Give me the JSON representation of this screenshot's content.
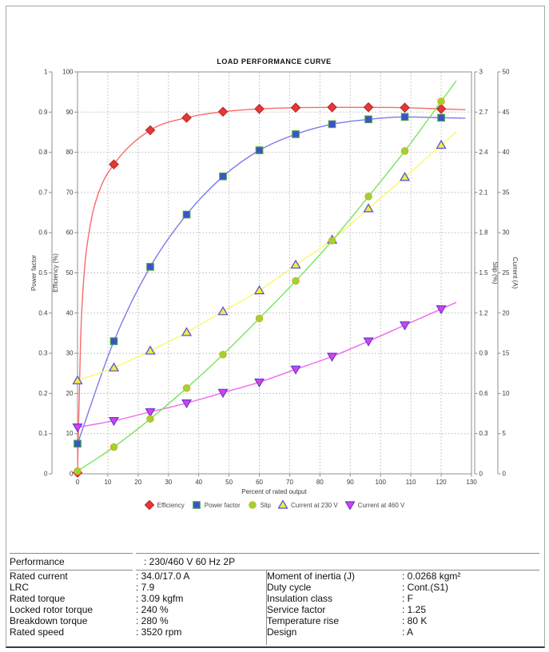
{
  "chart_data": {
    "type": "line",
    "title": "LOAD PERFORMANCE CURVE",
    "xlabel": "Percent of rated output",
    "x_range": [
      0,
      130
    ],
    "x_ticks": [
      "0",
      "10",
      "20",
      "30",
      "40",
      "50",
      "60",
      "70",
      "80",
      "90",
      "100",
      "110",
      "120",
      "130"
    ],
    "grid": true,
    "legend_position": "bottom",
    "x": [
      0,
      12,
      24,
      36,
      48,
      60,
      72,
      84,
      96,
      108,
      120
    ],
    "axes": [
      {
        "id": "pf",
        "title": "Power factor",
        "min": 0,
        "max": 1,
        "side": "left-outer",
        "ticks": [
          "0",
          "0.1",
          "0.2",
          "0.3",
          "0.4",
          "0.5",
          "0.6",
          "0.7",
          "0.8",
          "0.9",
          "1"
        ]
      },
      {
        "id": "eff",
        "title": "Efficiency (%)",
        "min": 0,
        "max": 100,
        "side": "left-inner",
        "ticks": [
          "0",
          "10",
          "20",
          "30",
          "40",
          "50",
          "60",
          "70",
          "80",
          "90",
          "100"
        ]
      },
      {
        "id": "slip",
        "title": "Slip (%)",
        "min": 0,
        "max": 3,
        "side": "right-inner",
        "ticks": [
          "0",
          "0.3",
          "0.6",
          "0.9",
          "1.2",
          "1.5",
          "1.8",
          "2.1",
          "2.4",
          "2.7",
          "3"
        ]
      },
      {
        "id": "cur",
        "title": "Current (A)",
        "min": 0,
        "max": 50,
        "side": "right-outer",
        "ticks": [
          "0",
          "5",
          "10",
          "15",
          "20",
          "25",
          "30",
          "35",
          "40",
          "45",
          "50"
        ]
      }
    ],
    "series": [
      {
        "name": "Efficiency",
        "axis": "eff",
        "marker": "diamond",
        "line_color": "#f96b6b",
        "fill": "#e53935",
        "stroke": "#bc2b2b",
        "values": [
          0.3,
          77,
          85.5,
          88.6,
          90.1,
          90.8,
          91.1,
          91.2,
          91.2,
          91.1,
          90.8
        ],
        "rise_hint": [
          [
            1,
            33
          ],
          [
            2,
            48
          ],
          [
            4,
            61
          ],
          [
            7,
            70
          ]
        ],
        "extend_to": 128
      },
      {
        "name": "Power factor",
        "axis": "pf",
        "marker": "square",
        "line_color": "#7b7bea",
        "fill": "#3d50cf",
        "stroke": "#3f9e43",
        "values": [
          0.075,
          0.33,
          0.515,
          0.645,
          0.74,
          0.805,
          0.845,
          0.87,
          0.882,
          0.888,
          0.886
        ],
        "extend_to": 128
      },
      {
        "name": "Slip",
        "axis": "slip",
        "marker": "circle",
        "line_color": "#77e45c",
        "fill": "#8cdc32",
        "stroke": "#eda32f",
        "values": [
          0.02,
          0.2,
          0.41,
          0.64,
          0.89,
          1.16,
          1.44,
          1.74,
          2.07,
          2.41,
          2.78
        ],
        "extend_to": 125
      },
      {
        "name": "Current at 230 V",
        "axis": "cur",
        "marker": "triangle-up",
        "line_color": "#fdf76a",
        "fill": "#f3eb46",
        "stroke": "#4d4dd2",
        "values": [
          11.6,
          13.2,
          15.3,
          17.6,
          20.2,
          22.8,
          26.0,
          29.1,
          33.0,
          36.9,
          40.9
        ],
        "extend_to": 125
      },
      {
        "name": "Current at 460 V",
        "axis": "cur",
        "marker": "triangle-down",
        "line_color": "#f266f2",
        "fill": "#dd3fe4",
        "stroke": "#5d3fd6",
        "values": [
          5.8,
          6.6,
          7.7,
          8.8,
          10.1,
          11.4,
          13.0,
          14.6,
          16.5,
          18.5,
          20.5
        ],
        "extend_to": 125
      }
    ],
    "draw_order": [
      0,
      1,
      4,
      3,
      2
    ]
  },
  "table": {
    "performance_label": "Performance",
    "performance_value": ": 230/460 V 60 Hz 2P",
    "rows": [
      {
        "l1": "Rated current",
        "v1": ": 34.0/17.0 A",
        "l2": "Moment of inertia (J)",
        "v2": ": 0.0268 kgm²"
      },
      {
        "l1": "LRC",
        "v1": ": 7.9",
        "l2": "Duty cycle",
        "v2": ": Cont.(S1)"
      },
      {
        "l1": "Rated torque",
        "v1": ": 3.09 kgfm",
        "l2": "Insulation class",
        "v2": ": F"
      },
      {
        "l1": "Locked rotor torque",
        "v1": ": 240 %",
        "l2": "Service factor",
        "v2": ": 1.25"
      },
      {
        "l1": "Breakdown torque",
        "v1": ": 280 %",
        "l2": "Temperature rise",
        "v2": ": 80 K"
      },
      {
        "l1": "Rated speed",
        "v1": ": 3520 rpm",
        "l2": "Design",
        "v2": ": A"
      }
    ]
  }
}
